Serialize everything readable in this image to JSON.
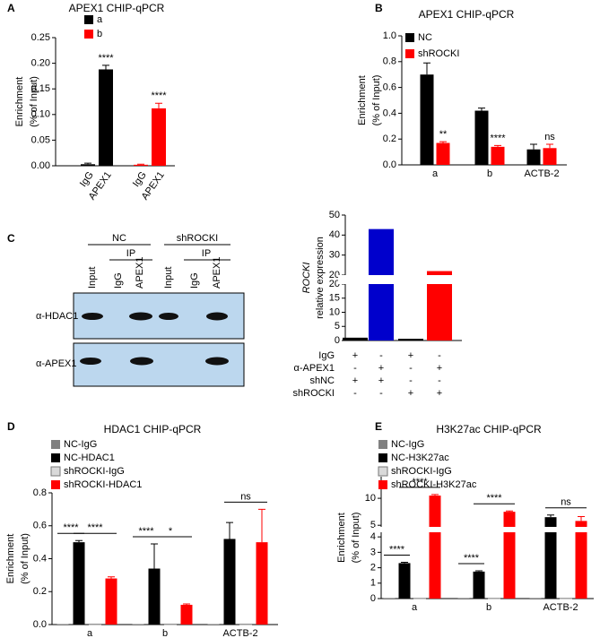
{
  "chart_data": [
    {
      "type": "bar",
      "panel": "A",
      "title": "APEX1 CHIP-qPCR",
      "ylabel": [
        "Enrichment",
        "(% of Input)"
      ],
      "categories": [
        "IgG",
        "APEX1",
        "IgG",
        "APEX1"
      ],
      "series": [
        {
          "name": "a",
          "color": "#000000",
          "values": [
            0.003,
            0.188,
            null,
            null
          ],
          "errors": [
            0.002,
            0.008,
            null,
            null
          ],
          "annotations": [
            null,
            "****",
            null,
            null
          ]
        },
        {
          "name": "b",
          "color": "#ff0000",
          "values": [
            null,
            null,
            0.002,
            0.112
          ],
          "errors": [
            null,
            null,
            0.001,
            0.01
          ],
          "annotations": [
            null,
            null,
            null,
            "****"
          ]
        }
      ],
      "ylim": [
        0,
        0.25
      ],
      "yticks": [
        {
          "value": 0,
          "label": "0.00"
        },
        {
          "value": 0.05,
          "label": "0.05"
        },
        {
          "value": 0.1,
          "label": "0.10"
        },
        {
          "value": 0.15,
          "label": "0.15"
        },
        {
          "value": 0.2,
          "label": "0.20"
        },
        {
          "value": 0.25,
          "label": "0.25"
        }
      ]
    },
    {
      "type": "bar",
      "panel": "B",
      "title": "APEX1 CHIP-qPCR",
      "ylabel": [
        "Enrichment",
        "(% of Input)"
      ],
      "categories": [
        "a",
        "b",
        "ACTB-2"
      ],
      "series": [
        {
          "name": "NC",
          "color": "#000000",
          "values": [
            0.7,
            0.42,
            0.12
          ],
          "errors": [
            0.09,
            0.02,
            0.04
          ]
        },
        {
          "name": "shROCKI",
          "color": "#ff0000",
          "values": [
            0.17,
            0.14,
            0.13
          ],
          "errors": [
            0.01,
            0.01,
            0.03
          ],
          "annotations": [
            "**",
            "****",
            "ns"
          ]
        }
      ],
      "ylim": [
        0,
        1
      ],
      "yticks": [
        {
          "value": 0,
          "label": "0.0"
        },
        {
          "value": 0.2,
          "label": "0.2"
        },
        {
          "value": 0.4,
          "label": "0.4"
        },
        {
          "value": 0.6,
          "label": "0.6"
        },
        {
          "value": 0.8,
          "label": "0.8"
        },
        {
          "value": 1,
          "label": "1.0"
        }
      ]
    },
    {
      "type": "bar",
      "ylabel": [
        "ROCKI",
        "relative expression"
      ],
      "values": [
        1,
        43,
        0.6,
        22
      ],
      "colors": [
        "#000000",
        "#0000cc",
        "#000000",
        "#ff0000"
      ],
      "conditions": [
        {
          "label": "IgG",
          "marks": [
            "+",
            "-",
            "+",
            "-"
          ]
        },
        {
          "label": "α-APEX1",
          "marks": [
            "-",
            "+",
            "-",
            "+"
          ]
        },
        {
          "label": "shNC",
          "marks": [
            "+",
            "+",
            "-",
            "-"
          ]
        },
        {
          "label": "shROCKI",
          "marks": [
            "-",
            "-",
            "+",
            "+"
          ]
        }
      ],
      "ylim_lower": [
        0,
        20
      ],
      "ylim_upper": [
        20,
        50
      ],
      "yticks_lower": [
        0,
        5,
        10,
        15,
        20
      ],
      "yticks_upper": [
        20,
        30,
        40,
        50
      ]
    },
    {
      "type": "bar",
      "panel": "D",
      "title": "HDAC1 CHIP-qPCR",
      "ylabel": [
        "Enrichment",
        "(% of Input)"
      ],
      "categories": [
        "a",
        "b",
        "ACTB-2"
      ],
      "series": [
        {
          "name": "NC-IgG",
          "color": "#808080",
          "values": [
            0.003,
            0.003,
            0.003
          ]
        },
        {
          "name": "NC-HDAC1",
          "color": "#000000",
          "values": [
            0.5,
            0.34,
            0.52
          ],
          "errors": [
            0.01,
            0.15,
            0.1
          ]
        },
        {
          "name": "shROCKI-IgG",
          "color": "#d9d9d9",
          "values": [
            0.003,
            0.003,
            0.003
          ]
        },
        {
          "name": "shROCKI-HDAC1",
          "color": "#ff0000",
          "values": [
            0.28,
            0.12,
            0.5
          ],
          "errors": [
            0.01,
            0.005,
            0.2
          ]
        }
      ],
      "brackets": [
        [
          "****",
          "****"
        ],
        [
          "****",
          "*"
        ],
        [
          "ns"
        ]
      ],
      "ylim": [
        0,
        0.8
      ],
      "yticks": [
        {
          "value": 0,
          "label": "0.0"
        },
        {
          "value": 0.2,
          "label": "0.2"
        },
        {
          "value": 0.4,
          "label": "0.4"
        },
        {
          "value": 0.6,
          "label": "0.6"
        },
        {
          "value": 0.8,
          "label": "0.8"
        }
      ]
    },
    {
      "type": "bar",
      "panel": "E",
      "title": "H3K27ac CHIP-qPCR",
      "ylabel": [
        "Enrichment",
        "(% of Input)"
      ],
      "categories": [
        "a",
        "b",
        "ACTB-2"
      ],
      "series": [
        {
          "name": "NC-IgG",
          "color": "#808080",
          "values": [
            0.02,
            0.02,
            0.02
          ]
        },
        {
          "name": "NC-H3K27ac",
          "color": "#000000",
          "values": [
            2.3,
            1.75,
            6.5
          ],
          "errors": [
            0.05,
            0.05,
            0.4
          ]
        },
        {
          "name": "shROCKI-IgG",
          "color": "#d9d9d9",
          "values": [
            0.02,
            0.02,
            0.02
          ]
        },
        {
          "name": "shROCKI-H3K27ac",
          "color": "#ff0000",
          "values": [
            10.5,
            7.5,
            5.8
          ],
          "errors": [
            0.2,
            0.15,
            0.8
          ]
        }
      ],
      "brackets": [
        [
          "****",
          "****"
        ],
        [
          "****",
          "****"
        ],
        [
          "ns"
        ]
      ],
      "ylim_lower": [
        0,
        4.3
      ],
      "ylim_upper": [
        4.7,
        14
      ],
      "yticks_lower": [
        0,
        1,
        2,
        3,
        4
      ],
      "yticks_upper": [
        5,
        10
      ]
    }
  ],
  "blot": {
    "panel": "C",
    "groups": [
      {
        "label": "NC",
        "ip": "IP"
      },
      {
        "label": "shROCKI",
        "ip": "IP"
      }
    ],
    "lanes": [
      "Input",
      "IgG",
      "APEX1",
      "Input",
      "IgG",
      "APEX1"
    ],
    "rows": [
      "α-HDAC1",
      "α-APEX1"
    ]
  }
}
